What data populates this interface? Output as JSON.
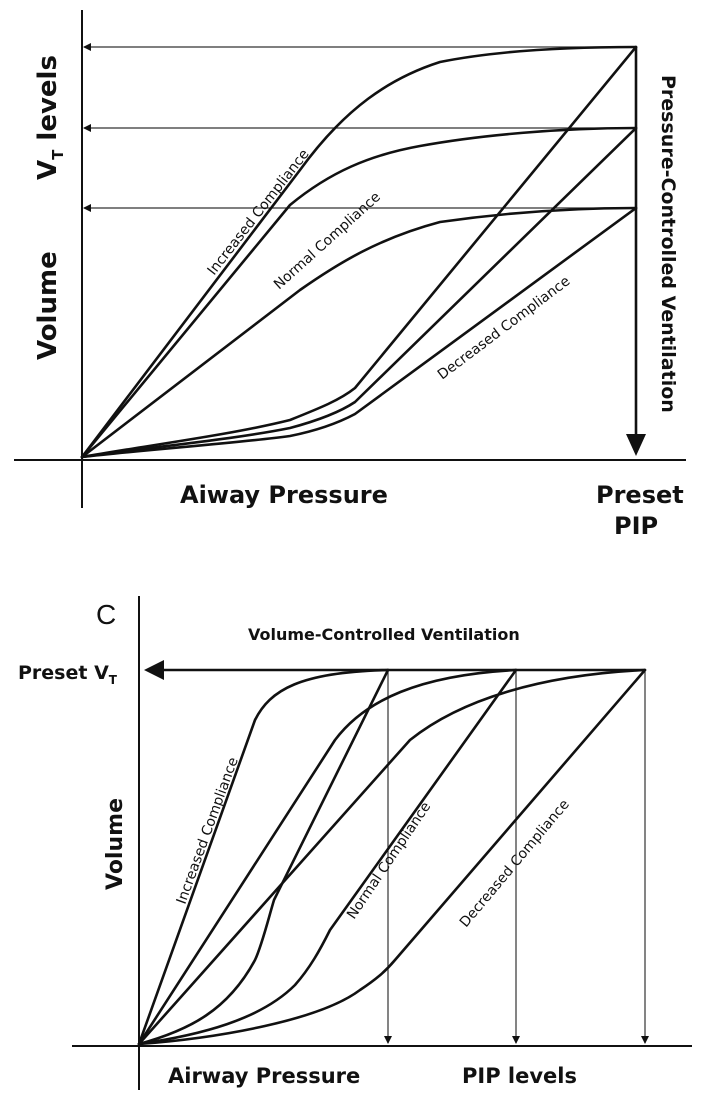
{
  "panel_a": {
    "y_label_top": "V",
    "y_label_sub": "T",
    "y_label_rest": " levels",
    "y_label_volume": "Volume",
    "x_label": "Aiway Pressure",
    "preset_line1": "Preset",
    "preset_line2": "PIP",
    "mode_label": "Pressure-Controlled Ventilation",
    "curve_increased": "Increased Compliance",
    "curve_normal": "Normal Compliance",
    "curve_decreased": "Decreased Compliance"
  },
  "panel_c": {
    "panel_letter": "C",
    "title": "Volume-Controlled Ventilation",
    "preset_vt_main": "Preset V",
    "preset_vt_sub": "T",
    "y_label": "Volume",
    "x_label": "Airway Pressure",
    "pip_levels": "PIP levels",
    "curve_increased": "Increased Compliance",
    "curve_normal": "Normal Compliance",
    "curve_decreased": "Decreased Compliance"
  },
  "colors": {
    "ink": "#111111",
    "background": "#ffffff"
  }
}
